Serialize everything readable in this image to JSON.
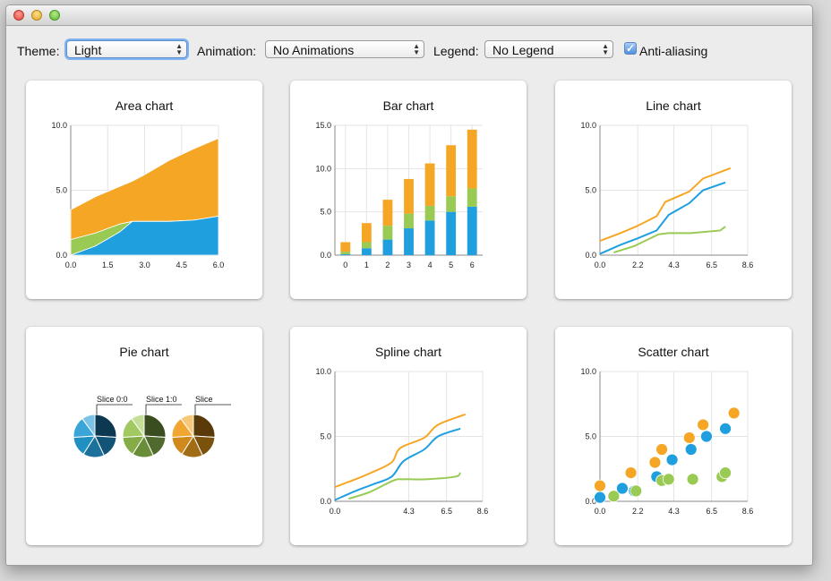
{
  "toolbar": {
    "theme_label": "Theme:",
    "theme_value": "Light",
    "animation_label": "Animation:",
    "animation_value": "No Animations",
    "legend_label": "Legend:",
    "legend_value": "No Legend",
    "antialias_label": "Anti-aliasing",
    "antialias_checked": true
  },
  "colors": {
    "blue": "#209fdf",
    "green": "#99ca53",
    "orange": "#f6a625"
  },
  "charts": {
    "area": {
      "title": "Area chart",
      "chart_data": {
        "type": "area",
        "xticks": [
          "0.0",
          "1.5",
          "3.0",
          "4.5",
          "6.0"
        ],
        "yticks": [
          "0.0",
          "5.0",
          "10.0"
        ],
        "xlim": [
          0,
          6
        ],
        "ylim": [
          0,
          10
        ],
        "x": [
          0,
          1,
          2,
          2.5,
          3,
          4,
          5,
          6
        ],
        "series": [
          {
            "color": "#209fdf",
            "values": [
              0,
              0.7,
              1.8,
              2.6,
              2.6,
              2.6,
              2.7,
              3.0
            ]
          },
          {
            "color": "#99ca53",
            "values": [
              1.2,
              1.7,
              2.4,
              2.6,
              2.6,
              2.6,
              2.7,
              3.0
            ]
          },
          {
            "color": "#f6a625",
            "values": [
              3.5,
              4.5,
              5.3,
              5.7,
              6.2,
              7.3,
              8.2,
              9.0
            ]
          }
        ]
      }
    },
    "bar": {
      "title": "Bar chart",
      "chart_data": {
        "type": "bar",
        "stacked": true,
        "categories": [
          "0",
          "1",
          "2",
          "3",
          "4",
          "5",
          "6"
        ],
        "yticks": [
          "0.0",
          "5.0",
          "10.0",
          "15.0"
        ],
        "ylim": [
          0,
          15
        ],
        "series": [
          {
            "color": "#209fdf",
            "values": [
              0.1,
              0.8,
              1.8,
              3.1,
              4.0,
              5.0,
              5.6
            ]
          },
          {
            "color": "#99ca53",
            "values": [
              0.3,
              0.7,
              1.6,
              1.7,
              1.7,
              1.8,
              2.1
            ]
          },
          {
            "color": "#f6a625",
            "values": [
              1.1,
              2.2,
              3.0,
              4.0,
              4.9,
              5.9,
              6.8
            ]
          }
        ]
      }
    },
    "line": {
      "title": "Line chart",
      "chart_data": {
        "type": "line",
        "xticks": [
          "0.0",
          "2.2",
          "4.3",
          "6.5",
          "8.6"
        ],
        "yticks": [
          "0.0",
          "5.0",
          "10.0"
        ],
        "xlim": [
          0,
          8.6
        ],
        "ylim": [
          0,
          10
        ],
        "series": [
          {
            "color": "#209fdf",
            "points": [
              [
                0,
                0.1
              ],
              [
                1.2,
                0.8
              ],
              [
                2.2,
                1.3
              ],
              [
                3.3,
                1.9
              ],
              [
                4.0,
                3.1
              ],
              [
                5.2,
                4.0
              ],
              [
                6.0,
                5.0
              ],
              [
                7.3,
                5.6
              ]
            ]
          },
          {
            "color": "#99ca53",
            "points": [
              [
                0.8,
                0.2
              ],
              [
                2.0,
                0.7
              ],
              [
                3.4,
                1.6
              ],
              [
                4.0,
                1.7
              ],
              [
                5.3,
                1.7
              ],
              [
                7.0,
                1.9
              ],
              [
                7.3,
                2.2
              ]
            ]
          },
          {
            "color": "#f6a625",
            "points": [
              [
                0,
                1.1
              ],
              [
                1.2,
                1.7
              ],
              [
                2.1,
                2.2
              ],
              [
                3.3,
                3.0
              ],
              [
                3.8,
                4.1
              ],
              [
                5.2,
                4.9
              ],
              [
                6.0,
                5.9
              ],
              [
                7.6,
                6.7
              ]
            ]
          }
        ]
      }
    },
    "pie": {
      "title": "Pie chart",
      "chart_data": {
        "type": "pie",
        "pies": [
          {
            "label": "Slice 0:0",
            "colors": [
              "#0c3851",
              "#135476",
              "#1b719b",
              "#208fc2",
              "#3aa6d8",
              "#7ac3e6"
            ],
            "values": [
              26,
              17,
              16,
              15,
              16,
              10
            ]
          },
          {
            "label": "Slice 1:0",
            "colors": [
              "#3a4d20",
              "#4f6a2c",
              "#6a8d39",
              "#86ac48",
              "#a2c862",
              "#c4de98"
            ],
            "values": [
              26,
              17,
              16,
              15,
              16,
              10
            ]
          },
          {
            "label": "Slice",
            "colors": [
              "#5a3a08",
              "#7a520e",
              "#a06c14",
              "#d08a1c",
              "#f0a630",
              "#f8c879"
            ],
            "values": [
              26,
              17,
              16,
              15,
              16,
              10
            ]
          }
        ]
      }
    },
    "spline": {
      "title": "Spline chart",
      "chart_data": {
        "type": "line",
        "smooth": true,
        "xticks": [
          "0.0",
          "4.3",
          "6.5",
          "8.6"
        ],
        "yticks": [
          "0.0",
          "5.0",
          "10.0"
        ],
        "xlim": [
          0,
          8.6
        ],
        "ylim": [
          0,
          10
        ],
        "series": [
          {
            "color": "#209fdf",
            "points": [
              [
                0,
                0.1
              ],
              [
                1.2,
                0.8
              ],
              [
                2.2,
                1.3
              ],
              [
                3.3,
                1.9
              ],
              [
                4.0,
                3.1
              ],
              [
                5.2,
                4.0
              ],
              [
                6.0,
                5.0
              ],
              [
                7.3,
                5.6
              ]
            ]
          },
          {
            "color": "#99ca53",
            "points": [
              [
                0.8,
                0.2
              ],
              [
                2.0,
                0.7
              ],
              [
                3.4,
                1.6
              ],
              [
                4.0,
                1.7
              ],
              [
                5.3,
                1.7
              ],
              [
                7.0,
                1.9
              ],
              [
                7.3,
                2.2
              ]
            ]
          },
          {
            "color": "#f6a625",
            "points": [
              [
                0,
                1.1
              ],
              [
                1.2,
                1.7
              ],
              [
                2.1,
                2.2
              ],
              [
                3.3,
                3.0
              ],
              [
                3.8,
                4.1
              ],
              [
                5.2,
                4.9
              ],
              [
                6.0,
                5.9
              ],
              [
                7.6,
                6.7
              ]
            ]
          }
        ]
      }
    },
    "scatter": {
      "title": "Scatter chart",
      "chart_data": {
        "type": "scatter",
        "xticks": [
          "0.0",
          "2.2",
          "4.3",
          "6.5",
          "8.6"
        ],
        "yticks": [
          "0.0",
          "5.0",
          "10.0"
        ],
        "xlim": [
          0,
          8.6
        ],
        "ylim": [
          0,
          10
        ],
        "series": [
          {
            "color": "#209fdf",
            "points": [
              [
                0,
                0.3
              ],
              [
                1.3,
                1.0
              ],
              [
                2.0,
                0.8
              ],
              [
                3.3,
                1.9
              ],
              [
                4.2,
                3.2
              ],
              [
                5.3,
                4.0
              ],
              [
                6.2,
                5.0
              ],
              [
                7.3,
                5.6
              ]
            ]
          },
          {
            "color": "#99ca53",
            "points": [
              [
                0.8,
                0.4
              ],
              [
                2.1,
                0.8
              ],
              [
                3.6,
                1.6
              ],
              [
                4.0,
                1.7
              ],
              [
                5.4,
                1.7
              ],
              [
                7.1,
                1.9
              ],
              [
                7.3,
                2.2
              ]
            ]
          },
          {
            "color": "#f6a625",
            "points": [
              [
                0,
                1.2
              ],
              [
                1.8,
                2.2
              ],
              [
                3.2,
                3.0
              ],
              [
                3.6,
                4.0
              ],
              [
                5.2,
                4.9
              ],
              [
                6.0,
                5.9
              ],
              [
                7.8,
                6.8
              ]
            ]
          }
        ]
      }
    }
  }
}
